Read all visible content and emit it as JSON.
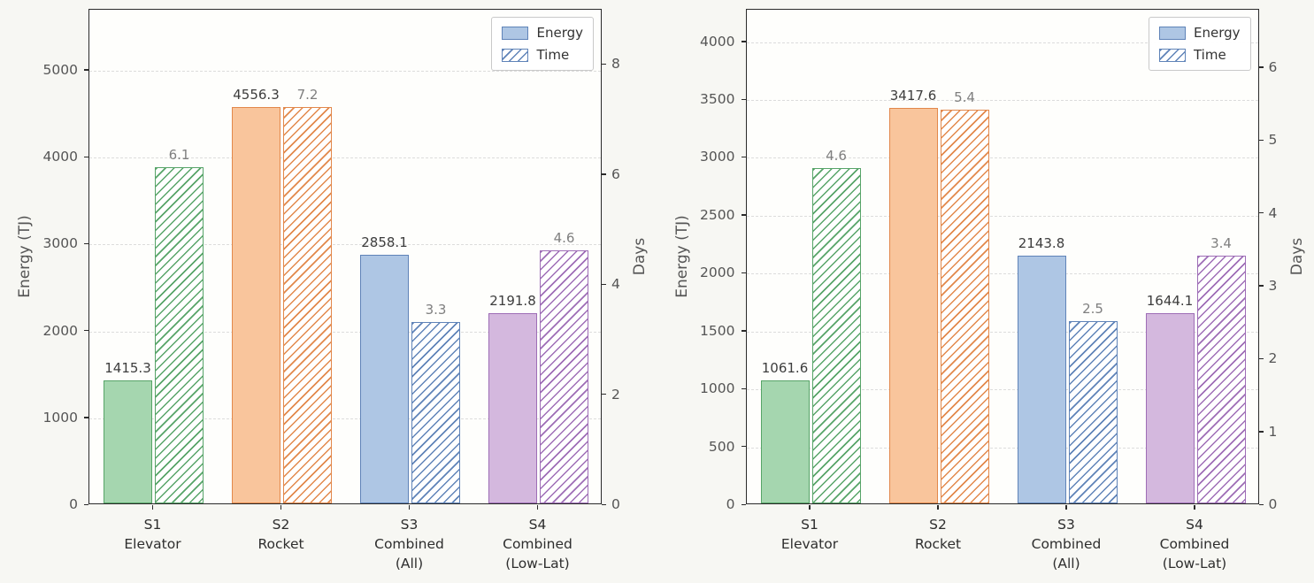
{
  "colors": {
    "figure_bg": "#f7f7f3",
    "plot_bg": "#fefefc",
    "grid": "#dcdcdc",
    "axis": "#2a2a2a",
    "tick_label": "#555555",
    "axis_label": "#555555",
    "category_label": "#2e2e2e",
    "energy_value_label": "#3d3d3d",
    "time_value_label": "#7f7f7f",
    "legend_fill": "#aec6e4",
    "legend_edge": "#5f83b8",
    "bars": [
      {
        "fill": "#a5d6af",
        "edge": "#57a468"
      },
      {
        "fill": "#f9c59c",
        "edge": "#e2884b"
      },
      {
        "fill": "#aec6e4",
        "edge": "#5f83b8"
      },
      {
        "fill": "#d4b8de",
        "edge": "#9e6db6"
      }
    ]
  },
  "chart_data": [
    {
      "type": "bar",
      "title": "",
      "categories": [
        "S1 Elevator",
        "S2 Rocket",
        "S3 Combined (All)",
        "S4 Combined (Low-Lat)"
      ],
      "category_lines": [
        [
          "S1",
          "Elevator"
        ],
        [
          "S2",
          "Rocket"
        ],
        [
          "S3",
          "Combined",
          "(All)"
        ],
        [
          "S4",
          "Combined",
          "(Low-Lat)"
        ]
      ],
      "series": [
        {
          "name": "Energy",
          "axis": "left",
          "values": [
            1415.3,
            4556.3,
            2858.1,
            2191.8
          ]
        },
        {
          "name": "Time",
          "axis": "right",
          "values": [
            6.1,
            7.2,
            3.3,
            4.6
          ]
        }
      ],
      "ylabel": "Energy (TJ)",
      "ylabel_right": "Days",
      "yticks_left": [
        0,
        1000,
        2000,
        3000,
        4000,
        5000
      ],
      "yticks_right": [
        0,
        2,
        4,
        6,
        8
      ],
      "ylim_left": [
        0,
        5700
      ],
      "ylim_right": [
        0,
        9
      ],
      "legend": [
        "Energy",
        "Time"
      ],
      "legend_position": "upper right",
      "grid": "horizontal dashed"
    },
    {
      "type": "bar",
      "title": "",
      "categories": [
        "S1 Elevator",
        "S2 Rocket",
        "S3 Combined (All)",
        "S4 Combined (Low-Lat)"
      ],
      "category_lines": [
        [
          "S1",
          "Elevator"
        ],
        [
          "S2",
          "Rocket"
        ],
        [
          "S3",
          "Combined",
          "(All)"
        ],
        [
          "S4",
          "Combined",
          "(Low-Lat)"
        ]
      ],
      "series": [
        {
          "name": "Energy",
          "axis": "left",
          "values": [
            1061.6,
            3417.6,
            2143.8,
            1644.1
          ]
        },
        {
          "name": "Time",
          "axis": "right",
          "values": [
            4.6,
            5.4,
            2.5,
            3.4
          ]
        }
      ],
      "ylabel": "Energy (TJ)",
      "ylabel_right": "Days",
      "yticks_left": [
        0,
        500,
        1000,
        1500,
        2000,
        2500,
        3000,
        3500,
        4000
      ],
      "yticks_right": [
        0,
        1,
        2,
        3,
        4,
        5,
        6
      ],
      "ylim_left": [
        0,
        4280
      ],
      "ylim_right": [
        0,
        6.8
      ],
      "legend": [
        "Energy",
        "Time"
      ],
      "legend_position": "upper right",
      "grid": "horizontal dashed"
    }
  ]
}
